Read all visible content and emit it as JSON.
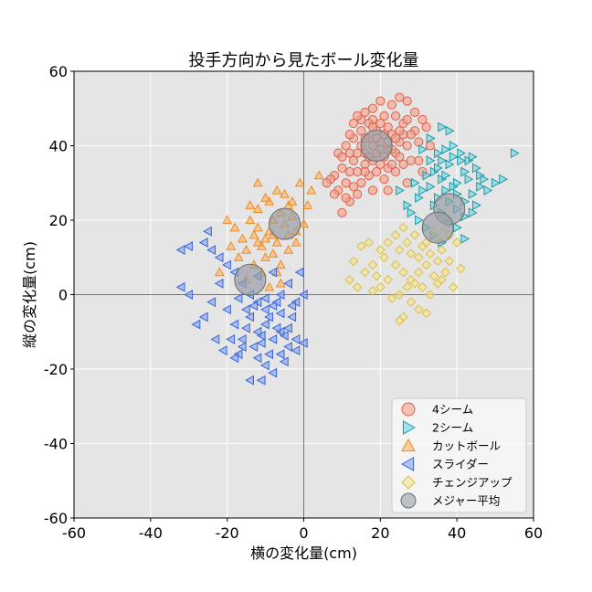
{
  "chart_data": {
    "type": "scatter",
    "title": "投手方向から見たボール変化量",
    "xlabel": "横の変化量(cm)",
    "ylabel": "縦の変化量(cm)",
    "xlim": [
      -60,
      60
    ],
    "ylim": [
      -60,
      60
    ],
    "xticks": [
      "-60",
      "-40",
      "-20",
      "0",
      "20",
      "40",
      "60"
    ],
    "yticks": [
      "60",
      "40",
      "20",
      "0",
      "-20",
      "-40",
      "-60"
    ],
    "grid": true,
    "legend_position": "lower-right",
    "series": [
      {
        "name": "4シーム",
        "marker": "circle",
        "color": "#f4a08a",
        "edge": "#e0604a",
        "points": [
          [
            14,
            38
          ],
          [
            15,
            40
          ],
          [
            17,
            42
          ],
          [
            18,
            36
          ],
          [
            20,
            41
          ],
          [
            22,
            39
          ],
          [
            16,
            35
          ],
          [
            19,
            44
          ],
          [
            21,
            37
          ],
          [
            13,
            36
          ],
          [
            23,
            43
          ],
          [
            24,
            38
          ],
          [
            12,
            33
          ],
          [
            15,
            44
          ],
          [
            18,
            47
          ],
          [
            20,
            46
          ],
          [
            22,
            45
          ],
          [
            25,
            41
          ],
          [
            26,
            46
          ],
          [
            27,
            40
          ],
          [
            11,
            30
          ],
          [
            13,
            29
          ],
          [
            10,
            34
          ],
          [
            9,
            38
          ],
          [
            8,
            32
          ],
          [
            7,
            31
          ],
          [
            17,
            32
          ],
          [
            19,
            33
          ],
          [
            21,
            31
          ],
          [
            14,
            27
          ],
          [
            12,
            25
          ],
          [
            10,
            22
          ],
          [
            16,
            49
          ],
          [
            18,
            50
          ],
          [
            20,
            52
          ],
          [
            23,
            51
          ],
          [
            25,
            53
          ],
          [
            27,
            52
          ],
          [
            29,
            49
          ],
          [
            31,
            47
          ],
          [
            26,
            35
          ],
          [
            28,
            36
          ],
          [
            24,
            33
          ],
          [
            22,
            34
          ],
          [
            30,
            41
          ],
          [
            32,
            45
          ],
          [
            33,
            40
          ],
          [
            11,
            40
          ],
          [
            13,
            42
          ],
          [
            15,
            47
          ],
          [
            17,
            46
          ],
          [
            19,
            38
          ],
          [
            21,
            43
          ],
          [
            23,
            35
          ],
          [
            25,
            37
          ],
          [
            14,
            33
          ],
          [
            16,
            38
          ],
          [
            18,
            40
          ],
          [
            12,
            38
          ],
          [
            20,
            35
          ],
          [
            24,
            48
          ],
          [
            27,
            47
          ],
          [
            29,
            44
          ],
          [
            9,
            28
          ],
          [
            11,
            26
          ],
          [
            15,
            30
          ],
          [
            17,
            37
          ],
          [
            19,
            42
          ],
          [
            22,
            41
          ],
          [
            26,
            43
          ],
          [
            28,
            43
          ],
          [
            13,
            46
          ],
          [
            16,
            42
          ],
          [
            20,
            39
          ],
          [
            23,
            39
          ],
          [
            6,
            30
          ],
          [
            8,
            27
          ],
          [
            10,
            37
          ],
          [
            12,
            43
          ],
          [
            14,
            48
          ],
          [
            18,
            45
          ],
          [
            21,
            48
          ],
          [
            25,
            44
          ],
          [
            30,
            36
          ],
          [
            31,
            33
          ],
          [
            27,
            30
          ],
          [
            22,
            28
          ],
          [
            18,
            28
          ],
          [
            16,
            33
          ],
          [
            24,
            42
          ]
        ]
      },
      {
        "name": "2シーム",
        "marker": "triangle-right",
        "color": "#6fd3dc",
        "edge": "#1a9aa8",
        "points": [
          [
            34,
            33
          ],
          [
            36,
            31
          ],
          [
            38,
            35
          ],
          [
            40,
            30
          ],
          [
            42,
            33
          ],
          [
            37,
            28
          ],
          [
            35,
            26
          ],
          [
            33,
            29
          ],
          [
            39,
            37
          ],
          [
            41,
            36
          ],
          [
            43,
            31
          ],
          [
            44,
            27
          ],
          [
            45,
            34
          ],
          [
            38,
            25
          ],
          [
            36,
            22
          ],
          [
            40,
            23
          ],
          [
            42,
            21
          ],
          [
            46,
            29
          ],
          [
            47,
            31
          ],
          [
            33,
            36
          ],
          [
            35,
            38
          ],
          [
            37,
            39
          ],
          [
            39,
            40
          ],
          [
            41,
            38
          ],
          [
            32,
            32
          ],
          [
            31,
            28
          ],
          [
            34,
            24
          ],
          [
            30,
            26
          ],
          [
            29,
            30
          ],
          [
            43,
            36
          ],
          [
            45,
            24
          ],
          [
            48,
            28
          ],
          [
            50,
            30
          ],
          [
            52,
            31
          ],
          [
            55,
            38
          ],
          [
            36,
            45
          ],
          [
            38,
            44
          ],
          [
            33,
            42
          ],
          [
            31,
            39
          ],
          [
            40,
            27
          ],
          [
            44,
            22
          ],
          [
            37,
            32
          ],
          [
            39,
            29
          ],
          [
            35,
            34
          ],
          [
            28,
            22
          ],
          [
            30,
            20
          ],
          [
            32,
            18
          ],
          [
            34,
            16
          ],
          [
            36,
            14
          ],
          [
            38,
            19
          ],
          [
            40,
            18
          ],
          [
            42,
            15
          ],
          [
            27,
            24
          ],
          [
            25,
            28
          ],
          [
            42,
            25
          ],
          [
            46,
            32
          ],
          [
            44,
            37
          ],
          [
            36,
            36
          ]
        ]
      },
      {
        "name": "カットボール",
        "marker": "triangle-up",
        "color": "#fdb46a",
        "edge": "#f08a1c",
        "points": [
          [
            -12,
            18
          ],
          [
            -10,
            15
          ],
          [
            -8,
            20
          ],
          [
            -6,
            22
          ],
          [
            -4,
            24
          ],
          [
            -11,
            13
          ],
          [
            -13,
            16
          ],
          [
            -9,
            17
          ],
          [
            -7,
            14
          ],
          [
            -5,
            19
          ],
          [
            -3,
            21
          ],
          [
            -2,
            17
          ],
          [
            -14,
            20
          ],
          [
            -15,
            12
          ],
          [
            -10,
            10
          ],
          [
            -8,
            11
          ],
          [
            -6,
            8
          ],
          [
            -4,
            12
          ],
          [
            -12,
            23
          ],
          [
            -9,
            25
          ],
          [
            -5,
            27
          ],
          [
            -3,
            25
          ],
          [
            -16,
            15
          ],
          [
            -17,
            10
          ],
          [
            -18,
            18
          ],
          [
            -20,
            20
          ],
          [
            -19,
            13
          ],
          [
            -22,
            6
          ],
          [
            -13,
            8
          ],
          [
            -11,
            6
          ],
          [
            -7,
            6
          ],
          [
            -2,
            14
          ],
          [
            0,
            19
          ],
          [
            1,
            24
          ],
          [
            2,
            28
          ],
          [
            -1,
            30
          ],
          [
            4,
            32
          ],
          [
            -12,
            30
          ],
          [
            -7,
            28
          ],
          [
            -15,
            4
          ],
          [
            -9,
            2
          ],
          [
            -6,
            3
          ],
          [
            -10,
            26
          ],
          [
            -14,
            24
          ],
          [
            -4,
            16
          ],
          [
            -8,
            16
          ],
          [
            -12,
            14
          ]
        ]
      },
      {
        "name": "スライダー",
        "marker": "triangle-left",
        "color": "#7ea3f0",
        "edge": "#3a64d8",
        "points": [
          [
            -12,
            -10
          ],
          [
            -10,
            -8
          ],
          [
            -8,
            -12
          ],
          [
            -6,
            -5
          ],
          [
            -14,
            -6
          ],
          [
            -13,
            -14
          ],
          [
            -11,
            -13
          ],
          [
            -9,
            -16
          ],
          [
            -15,
            -9
          ],
          [
            -16,
            -12
          ],
          [
            -17,
            -16
          ],
          [
            -18,
            -17
          ],
          [
            -10,
            -4
          ],
          [
            -8,
            -3
          ],
          [
            -6,
            -10
          ],
          [
            -4,
            -14
          ],
          [
            -2,
            -12
          ],
          [
            -3,
            -6
          ],
          [
            -7,
            -2
          ],
          [
            -12,
            -2
          ],
          [
            -14,
            0
          ],
          [
            -16,
            3
          ],
          [
            -18,
            6
          ],
          [
            -20,
            8
          ],
          [
            -22,
            10
          ],
          [
            -24,
            12
          ],
          [
            -26,
            14
          ],
          [
            -30,
            13
          ],
          [
            -32,
            12
          ],
          [
            -25,
            17
          ],
          [
            -22,
            3
          ],
          [
            -24,
            -2
          ],
          [
            -26,
            -6
          ],
          [
            -28,
            -8
          ],
          [
            -30,
            0
          ],
          [
            -32,
            2
          ],
          [
            -20,
            -4
          ],
          [
            -18,
            -8
          ],
          [
            -14,
            -23
          ],
          [
            -11,
            -23
          ],
          [
            -8,
            -21
          ],
          [
            -5,
            -18
          ],
          [
            -2,
            -15
          ],
          [
            0,
            -13
          ],
          [
            -4,
            -9
          ],
          [
            -10,
            -1
          ],
          [
            -6,
            0
          ],
          [
            -2,
            -2
          ],
          [
            0,
            0
          ],
          [
            -4,
            3
          ],
          [
            -8,
            6
          ],
          [
            -12,
            5
          ],
          [
            -13,
            -3
          ],
          [
            -9,
            -6
          ],
          [
            -11,
            -11
          ],
          [
            -7,
            -9
          ],
          [
            -5,
            -11
          ],
          [
            -3,
            -3
          ],
          [
            -1,
            6
          ],
          [
            -16,
            -14
          ],
          [
            -15,
            -4
          ],
          [
            -17,
            -1
          ],
          [
            -19,
            -12
          ],
          [
            -21,
            -15
          ],
          [
            -23,
            -12
          ],
          [
            -12,
            -17
          ],
          [
            -10,
            -19
          ],
          [
            -6,
            -16
          ]
        ]
      },
      {
        "name": "チェンジアップ",
        "marker": "diamond",
        "color": "#f6e28f",
        "edge": "#d8c048",
        "points": [
          [
            24,
            8
          ],
          [
            26,
            6
          ],
          [
            28,
            4
          ],
          [
            30,
            10
          ],
          [
            32,
            8
          ],
          [
            34,
            5
          ],
          [
            25,
            12
          ],
          [
            27,
            14
          ],
          [
            29,
            16
          ],
          [
            31,
            13
          ],
          [
            33,
            11
          ],
          [
            35,
            9
          ],
          [
            22,
            4
          ],
          [
            20,
            2
          ],
          [
            18,
            1
          ],
          [
            23,
            -1
          ],
          [
            25,
            0
          ],
          [
            27,
            2
          ],
          [
            29,
            3
          ],
          [
            31,
            2
          ],
          [
            33,
            0
          ],
          [
            35,
            3
          ],
          [
            37,
            6
          ],
          [
            38,
            9
          ],
          [
            36,
            12
          ],
          [
            26,
            18
          ],
          [
            24,
            16
          ],
          [
            22,
            14
          ],
          [
            20,
            12
          ],
          [
            17,
            14
          ],
          [
            15,
            13
          ],
          [
            14,
            2
          ],
          [
            16,
            6
          ],
          [
            18,
            8
          ],
          [
            21,
            10
          ],
          [
            19,
            5
          ],
          [
            28,
            -2
          ],
          [
            30,
            -4
          ],
          [
            32,
            -5
          ],
          [
            26,
            -6
          ],
          [
            25,
            -7
          ],
          [
            38,
            16
          ],
          [
            40,
            14
          ],
          [
            37,
            18
          ],
          [
            35,
            15
          ],
          [
            13,
            9
          ],
          [
            12,
            4
          ],
          [
            30,
            6
          ],
          [
            28,
            11
          ],
          [
            32,
            14
          ],
          [
            34,
            17
          ],
          [
            36,
            4
          ],
          [
            39,
            2
          ],
          [
            41,
            7
          ]
        ]
      },
      {
        "name": "メジャー平均",
        "marker": "circle",
        "color": "#9aa0a8",
        "edge": "#6b6b6b",
        "size": "large",
        "points": [
          [
            19,
            40
          ],
          [
            38,
            23
          ],
          [
            35,
            18
          ],
          [
            -5,
            19
          ],
          [
            -14,
            4
          ]
        ]
      }
    ]
  }
}
